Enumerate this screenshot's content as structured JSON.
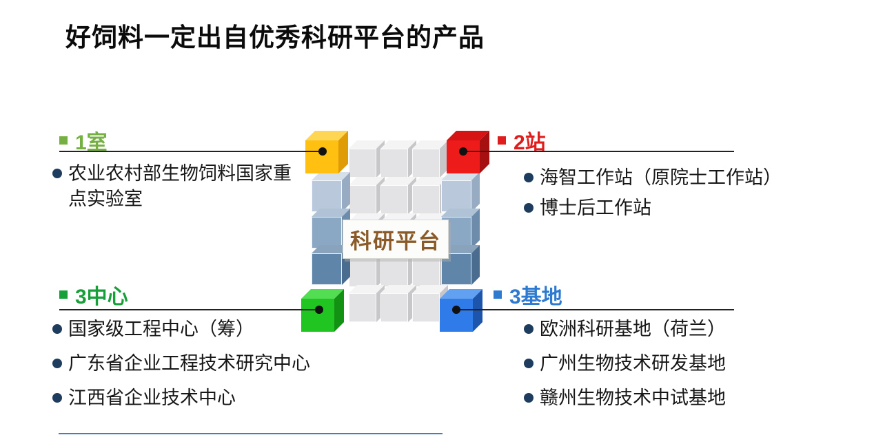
{
  "slide": {
    "title": "好饲料一定出自优秀科研平台的产品",
    "center_label": "科研平台"
  },
  "quadrants": {
    "top_left": {
      "heading": "1室",
      "heading_color": "#76b043",
      "items": [
        "农业农村部生物饲料国家重点实验室"
      ]
    },
    "top_right": {
      "heading": "2站",
      "heading_color": "#e01d1d",
      "items": [
        "海智工作站（原院士工作站）",
        "博士后工作站"
      ]
    },
    "bottom_left": {
      "heading": "3中心",
      "heading_color": "#17a03a",
      "items": [
        "国家级工程中心（筹）",
        "广东省企业工程技术研究中心",
        "江西省企业技术中心"
      ]
    },
    "bottom_right": {
      "heading": "3基地",
      "heading_color": "#2d7ad0",
      "items": [
        "欧洲科研基地（荷兰）",
        "广州生物技术研发基地",
        "赣州生物技术中试基地"
      ]
    }
  },
  "colors": {
    "title_text": "#0b0b0b",
    "body_text": "#171717",
    "bullet_dot": "#1d3c5e",
    "connector_line": "#222222",
    "connector_dot": "#111111",
    "center_label_text": "#8a5a28",
    "center_label_bg": "#fcfcfa",
    "cube_yellow": "#ffc011",
    "cube_red": "#ee1b1b",
    "cube_green": "#21c521",
    "cube_blue": "#2f7bea",
    "tower_gray": "#e3e3e5",
    "column_blue_top": "#b9c9db",
    "column_blue_mid": "#8aa7c4",
    "column_blue_bottom": "#5f85a9",
    "footer_line": "#3f7fc6"
  }
}
